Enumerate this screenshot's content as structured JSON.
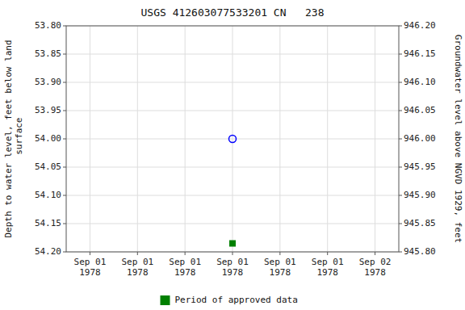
{
  "chart_data": {
    "type": "scatter",
    "title": "USGS 412603077533201 CN   238",
    "y_label": "Depth to water level, feet below land\n surface",
    "y2_label": "Groundwater level above NGVD 1929, feet",
    "categories": [
      "Sep 01\n1978",
      "Sep 01\n1978",
      "Sep 01\n1978",
      "Sep 01\n1978",
      "Sep 01\n1978",
      "Sep 01\n1978",
      "Sep 02\n1978"
    ],
    "series": [
      {
        "color": "#0000ff",
        "marker": "open-circle",
        "values": [
          null,
          null,
          null,
          54.0,
          null,
          null,
          null
        ]
      },
      {
        "name": "Period of approved data",
        "color": "#008000",
        "marker": "square",
        "values": [
          null,
          null,
          null,
          54.185,
          null,
          null,
          null
        ]
      }
    ],
    "ylim": [
      54.2,
      53.8
    ],
    "yticks": [
      {
        "value": 53.8,
        "label": "53.80"
      },
      {
        "value": 53.85,
        "label": "53.85"
      },
      {
        "value": 53.9,
        "label": "53.90"
      },
      {
        "value": 53.95,
        "label": "53.95"
      },
      {
        "value": 54.0,
        "label": "54.00"
      },
      {
        "value": 54.05,
        "label": "54.05"
      },
      {
        "value": 54.1,
        "label": "54.10"
      },
      {
        "value": 54.15,
        "label": "54.15"
      },
      {
        "value": 54.2,
        "label": "54.20"
      }
    ],
    "y2lim": [
      945.8,
      946.2
    ],
    "y2ticks": [
      {
        "value": 946.2,
        "label": "946.20"
      },
      {
        "value": 946.15,
        "label": "946.15"
      },
      {
        "value": 946.1,
        "label": "946.10"
      },
      {
        "value": 946.05,
        "label": "946.05"
      },
      {
        "value": 946.0,
        "label": "946.00"
      },
      {
        "value": 945.95,
        "label": "945.95"
      },
      {
        "value": 945.9,
        "label": "945.90"
      },
      {
        "value": 945.85,
        "label": "945.85"
      },
      {
        "value": 945.8,
        "label": "945.80"
      }
    ],
    "grid": true,
    "legend": "bottom"
  }
}
